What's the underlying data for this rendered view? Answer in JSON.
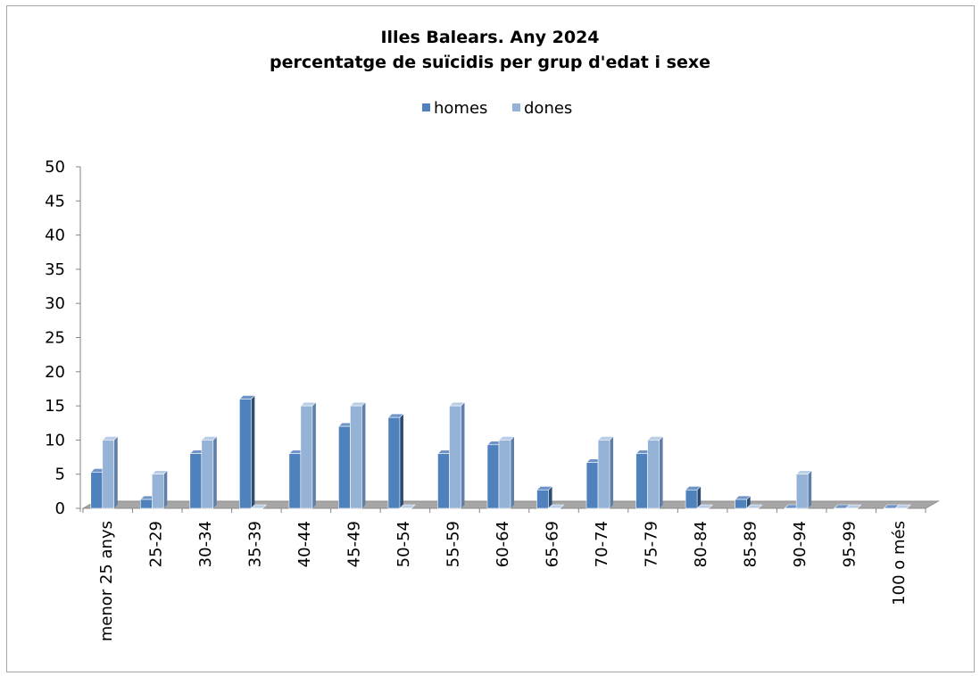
{
  "chart_data": {
    "type": "bar",
    "title": "Illes Balears. Any 2024",
    "subtitle": "percentatge de suïcidis per grup d'edat i sexe",
    "legend_position": "top",
    "categories": [
      "menor 25 anys",
      "25-29",
      "30-34",
      "35-39",
      "40-44",
      "45-49",
      "50-54",
      "55-59",
      "60-64",
      "65-69",
      "70-74",
      "75-79",
      "80-84",
      "85-89",
      "90-94",
      "95-99",
      "100 o més"
    ],
    "series": [
      {
        "name": "homes",
        "color": "#4f81bd",
        "values": [
          5.3,
          1.3,
          8.0,
          16.0,
          8.0,
          12.0,
          13.3,
          8.0,
          9.3,
          2.7,
          6.7,
          8.0,
          2.7,
          1.3,
          0,
          0,
          0
        ]
      },
      {
        "name": "dones",
        "color": "#95b3d7",
        "values": [
          10.0,
          5.0,
          10.0,
          0,
          15.0,
          15.0,
          0,
          15.0,
          10.0,
          0,
          10.0,
          10.0,
          0,
          0,
          5.0,
          0,
          0
        ]
      }
    ],
    "ylim": [
      0,
      50
    ],
    "yticks": [
      0,
      5,
      10,
      15,
      20,
      25,
      30,
      35,
      40,
      45,
      50
    ],
    "grid": false,
    "xlabel": "",
    "ylabel": ""
  }
}
